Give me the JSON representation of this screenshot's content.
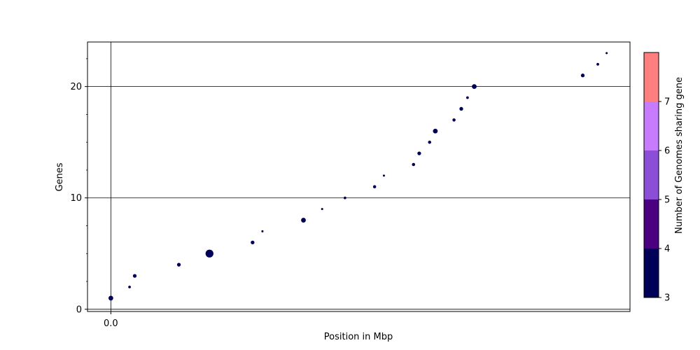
{
  "chart_data": {
    "type": "scatter",
    "xlabel": "Position in Mbp",
    "ylabel": "Genes",
    "x_ticks": [
      {
        "value": 0.0,
        "label": "0.0"
      }
    ],
    "y_ticks": [
      {
        "value": 0,
        "label": "0"
      },
      {
        "value": 10,
        "label": "10"
      },
      {
        "value": 20,
        "label": "20"
      }
    ],
    "y_minor_ticks": [
      2.5,
      5,
      7.5,
      12.5,
      15,
      17.5,
      22.5
    ],
    "xlim": [
      -0.045,
      1.0
    ],
    "ylim": [
      -0.2,
      24
    ],
    "grid": {
      "horizontal": [
        0,
        10,
        20
      ],
      "vertical": [
        0.0
      ]
    },
    "points": [
      {
        "x": 0.0,
        "y": 1,
        "size": 4,
        "genomes": 3
      },
      {
        "x": 0.036,
        "y": 2,
        "size": 2,
        "genomes": 3
      },
      {
        "x": 0.046,
        "y": 3,
        "size": 3,
        "genomes": 3
      },
      {
        "x": 0.131,
        "y": 4,
        "size": 3,
        "genomes": 3
      },
      {
        "x": 0.19,
        "y": 5,
        "size": 7,
        "genomes": 3
      },
      {
        "x": 0.273,
        "y": 6,
        "size": 3,
        "genomes": 3
      },
      {
        "x": 0.292,
        "y": 7,
        "size": 1.5,
        "genomes": 3
      },
      {
        "x": 0.371,
        "y": 8,
        "size": 4,
        "genomes": 3
      },
      {
        "x": 0.407,
        "y": 9,
        "size": 1.5,
        "genomes": 3
      },
      {
        "x": 0.451,
        "y": 10,
        "size": 2,
        "genomes": 3
      },
      {
        "x": 0.508,
        "y": 11,
        "size": 2.5,
        "genomes": 3
      },
      {
        "x": 0.526,
        "y": 12,
        "size": 1.5,
        "genomes": 3
      },
      {
        "x": 0.583,
        "y": 13,
        "size": 2.5,
        "genomes": 3
      },
      {
        "x": 0.594,
        "y": 14,
        "size": 3,
        "genomes": 3
      },
      {
        "x": 0.614,
        "y": 15,
        "size": 2.5,
        "genomes": 3
      },
      {
        "x": 0.625,
        "y": 16,
        "size": 4,
        "genomes": 3
      },
      {
        "x": 0.661,
        "y": 17,
        "size": 2.5,
        "genomes": 3
      },
      {
        "x": 0.675,
        "y": 18,
        "size": 3,
        "genomes": 3
      },
      {
        "x": 0.687,
        "y": 19,
        "size": 2,
        "genomes": 3
      },
      {
        "x": 0.7,
        "y": 20,
        "size": 4,
        "genomes": 3
      },
      {
        "x": 0.909,
        "y": 21,
        "size": 3,
        "genomes": 3
      },
      {
        "x": 0.938,
        "y": 22,
        "size": 2,
        "genomes": 3
      },
      {
        "x": 0.955,
        "y": 23,
        "size": 1.5,
        "genomes": 3
      }
    ],
    "point_color": "#000058",
    "colorbar": {
      "label": "Number of Genomes sharing gene",
      "range": [
        3,
        8
      ],
      "ticks": [
        {
          "value": 3,
          "label": "3"
        },
        {
          "value": 4,
          "label": "4"
        },
        {
          "value": 5,
          "label": "5"
        },
        {
          "value": 6,
          "label": "6"
        },
        {
          "value": 7,
          "label": "7"
        }
      ],
      "bands": [
        {
          "from": 3,
          "to": 4,
          "color": "#000058"
        },
        {
          "from": 4,
          "to": 5,
          "color": "#4b0082"
        },
        {
          "from": 5,
          "to": 6,
          "color": "#8a4fd6"
        },
        {
          "from": 6,
          "to": 7,
          "color": "#c77bff"
        },
        {
          "from": 7,
          "to": 8,
          "color": "#ff7f7f"
        }
      ]
    }
  }
}
